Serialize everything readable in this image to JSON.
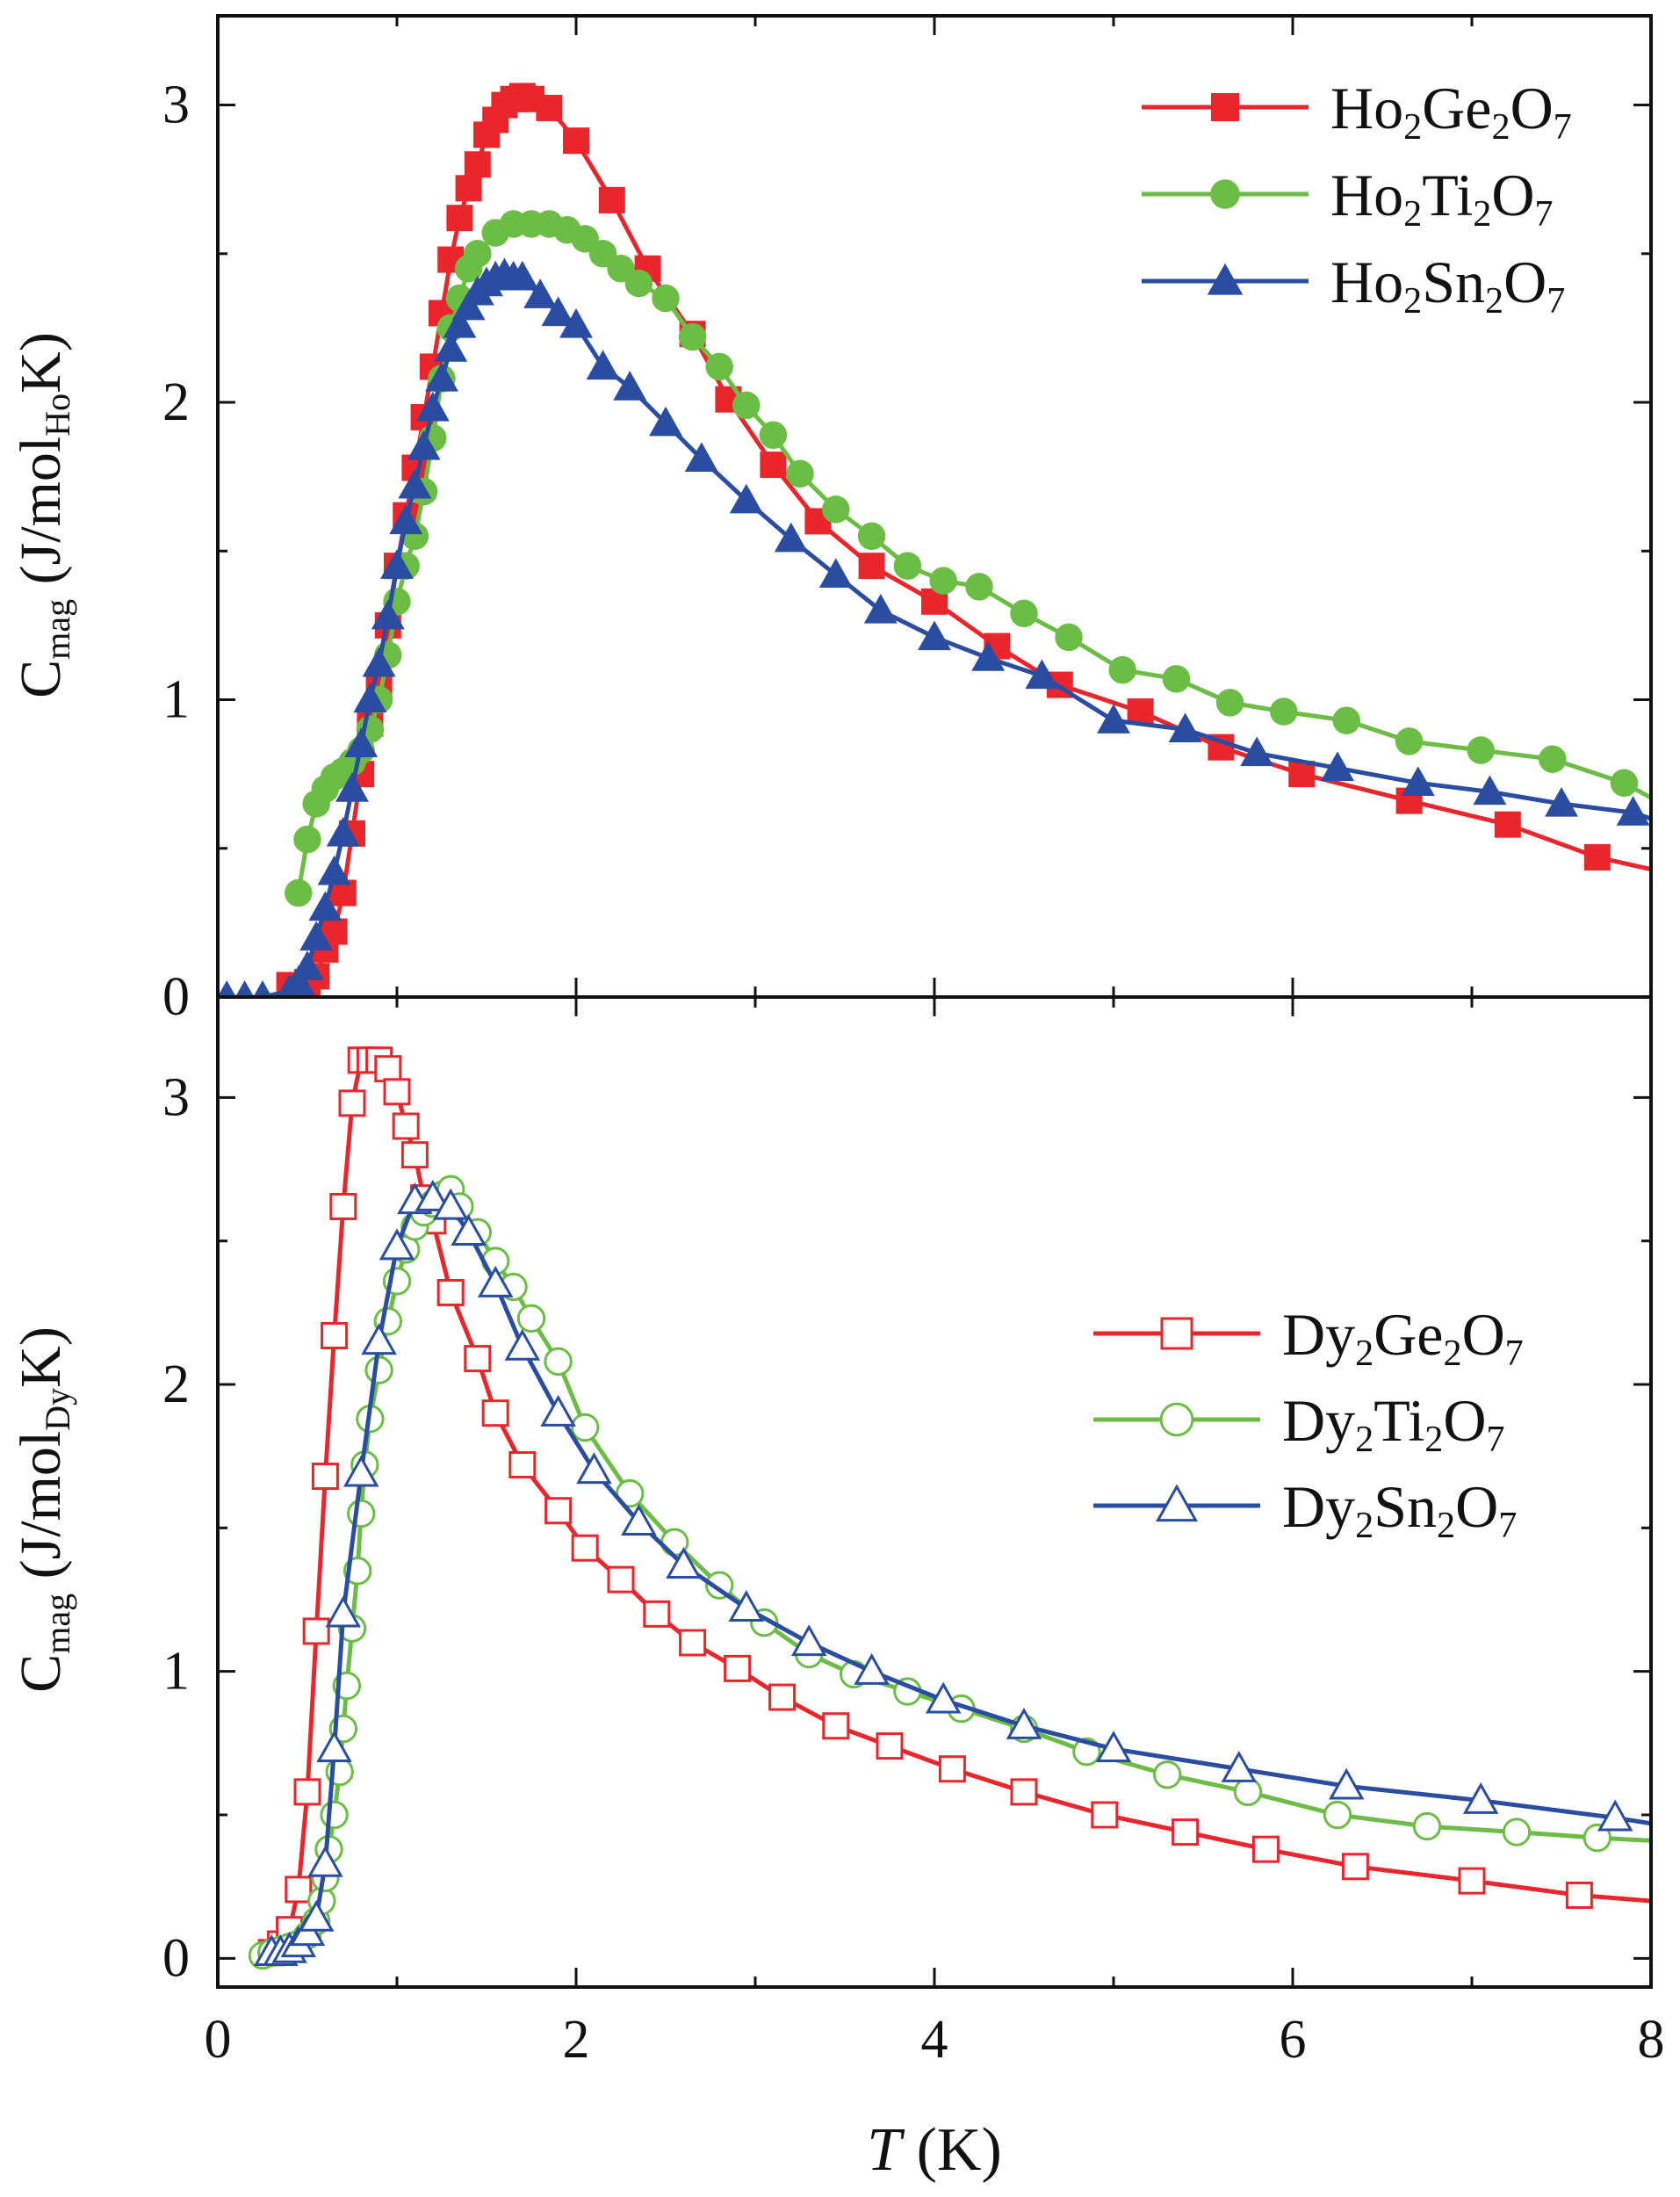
{
  "chart_data": [
    {
      "type": "line",
      "panel": "top",
      "ylabel_main": "C",
      "ylabel_sub": "mag",
      "ylabel_unit_pre": "(J/mol",
      "ylabel_unit_sub": "Ho",
      "ylabel_unit_post": "K)",
      "xlim": [
        0,
        8
      ],
      "ylim": [
        0,
        3.3
      ],
      "yticks": [
        0,
        1,
        2,
        3
      ],
      "ytick_labels": [
        "0",
        "1",
        "2",
        "3"
      ],
      "marker_fill": "filled",
      "legend_position": "top-right",
      "series": [
        {
          "name": "Ho2Ge2O7",
          "legend": [
            {
              "t": "Ho"
            },
            {
              "t": "2",
              "sub": true
            },
            {
              "t": "Ge"
            },
            {
              "t": "2",
              "sub": true
            },
            {
              "t": "O"
            },
            {
              "t": "7",
              "sub": true
            }
          ],
          "color": "#e8262b",
          "marker": "square",
          "x": [
            0.4,
            0.45,
            0.5,
            0.55,
            0.6,
            0.65,
            0.7,
            0.75,
            0.8,
            0.85,
            0.9,
            0.95,
            1.0,
            1.05,
            1.1,
            1.15,
            1.2,
            1.25,
            1.3,
            1.35,
            1.4,
            1.45,
            1.5,
            1.55,
            1.6,
            1.65,
            1.7,
            1.75,
            1.85,
            2.0,
            2.2,
            2.4,
            2.65,
            2.85,
            3.1,
            3.35,
            3.65,
            4.0,
            4.35,
            4.7,
            5.15,
            5.6,
            6.05,
            6.65,
            7.2,
            7.7,
            8.0
          ],
          "values": [
            0.04,
            0.04,
            0.05,
            0.07,
            0.16,
            0.22,
            0.35,
            0.55,
            0.75,
            0.92,
            1.05,
            1.25,
            1.45,
            1.62,
            1.78,
            1.95,
            2.12,
            2.3,
            2.48,
            2.62,
            2.72,
            2.8,
            2.9,
            2.95,
            3.0,
            3.02,
            3.03,
            3.02,
            2.99,
            2.88,
            2.68,
            2.45,
            2.23,
            2.01,
            1.79,
            1.6,
            1.45,
            1.33,
            1.18,
            1.05,
            0.96,
            0.84,
            0.75,
            0.66,
            0.58,
            0.47,
            0.43
          ]
        },
        {
          "name": "Ho2Ti2O7",
          "legend": [
            {
              "t": "Ho"
            },
            {
              "t": "2",
              "sub": true
            },
            {
              "t": "Ti"
            },
            {
              "t": "2",
              "sub": true
            },
            {
              "t": "O"
            },
            {
              "t": "7",
              "sub": true
            }
          ],
          "color": "#6cbd45",
          "marker": "circle",
          "x": [
            0.45,
            0.5,
            0.55,
            0.6,
            0.65,
            0.7,
            0.75,
            0.8,
            0.85,
            0.9,
            0.95,
            1.0,
            1.05,
            1.1,
            1.15,
            1.2,
            1.25,
            1.3,
            1.35,
            1.4,
            1.45,
            1.55,
            1.65,
            1.75,
            1.85,
            1.95,
            2.05,
            2.15,
            2.25,
            2.35,
            2.5,
            2.65,
            2.8,
            2.95,
            3.1,
            3.25,
            3.45,
            3.65,
            3.85,
            4.05,
            4.25,
            4.5,
            4.75,
            5.05,
            5.35,
            5.65,
            5.95,
            6.3,
            6.65,
            7.05,
            7.45,
            7.85,
            8.0
          ],
          "values": [
            0.35,
            0.53,
            0.65,
            0.7,
            0.74,
            0.76,
            0.79,
            0.83,
            0.9,
            1.0,
            1.15,
            1.33,
            1.45,
            1.55,
            1.7,
            1.88,
            2.08,
            2.25,
            2.35,
            2.45,
            2.5,
            2.57,
            2.6,
            2.6,
            2.6,
            2.58,
            2.55,
            2.5,
            2.45,
            2.4,
            2.35,
            2.22,
            2.12,
            1.99,
            1.89,
            1.76,
            1.64,
            1.55,
            1.45,
            1.4,
            1.38,
            1.29,
            1.21,
            1.1,
            1.07,
            0.99,
            0.96,
            0.93,
            0.86,
            0.83,
            0.8,
            0.72,
            0.67
          ]
        },
        {
          "name": "Ho2Sn2O7",
          "legend": [
            {
              "t": "Ho"
            },
            {
              "t": "2",
              "sub": true
            },
            {
              "t": "Sn"
            },
            {
              "t": "2",
              "sub": true
            },
            {
              "t": "O"
            },
            {
              "t": "7",
              "sub": true
            }
          ],
          "color": "#2a4da1",
          "marker": "triangle",
          "x": [
            0.05,
            0.15,
            0.25,
            0.4,
            0.45,
            0.5,
            0.55,
            0.6,
            0.65,
            0.7,
            0.75,
            0.8,
            0.85,
            0.9,
            0.95,
            1.0,
            1.05,
            1.1,
            1.15,
            1.2,
            1.25,
            1.3,
            1.35,
            1.4,
            1.45,
            1.5,
            1.55,
            1.6,
            1.65,
            1.7,
            1.8,
            1.9,
            2.0,
            2.15,
            2.3,
            2.5,
            2.7,
            2.95,
            3.2,
            3.45,
            3.7,
            4.0,
            4.3,
            4.6,
            5.0,
            5.4,
            5.8,
            6.25,
            6.7,
            7.1,
            7.5,
            7.9,
            8.0
          ],
          "values": [
            0.0,
            0.0,
            0.0,
            0.02,
            0.05,
            0.1,
            0.2,
            0.3,
            0.42,
            0.55,
            0.7,
            0.85,
            1.0,
            1.12,
            1.28,
            1.45,
            1.6,
            1.72,
            1.85,
            1.98,
            2.08,
            2.18,
            2.26,
            2.32,
            2.37,
            2.4,
            2.42,
            2.43,
            2.42,
            2.42,
            2.36,
            2.3,
            2.26,
            2.12,
            2.05,
            1.93,
            1.81,
            1.67,
            1.54,
            1.42,
            1.3,
            1.21,
            1.14,
            1.08,
            0.93,
            0.9,
            0.82,
            0.77,
            0.72,
            0.69,
            0.65,
            0.62,
            0.6
          ]
        }
      ]
    },
    {
      "type": "line",
      "panel": "bottom",
      "xlabel_var": "T",
      "xlabel_unit": "(K)",
      "ylabel_main": "C",
      "ylabel_sub": "mag",
      "ylabel_unit_pre": "(J/mol",
      "ylabel_unit_sub": "Dy",
      "ylabel_unit_post": "K)",
      "xlim": [
        0,
        8
      ],
      "ylim": [
        -0.1,
        3.35
      ],
      "xticks": [
        0,
        2,
        4,
        6,
        8
      ],
      "xtick_labels": [
        "0",
        "2",
        "4",
        "6",
        "8"
      ],
      "yticks": [
        0,
        1,
        2,
        3
      ],
      "ytick_labels": [
        "0",
        "1",
        "2",
        "3"
      ],
      "marker_fill": "open",
      "legend_position": "right",
      "series": [
        {
          "name": "Dy2Ge2O7",
          "legend": [
            {
              "t": "Dy"
            },
            {
              "t": "2",
              "sub": true
            },
            {
              "t": "Ge"
            },
            {
              "t": "2",
              "sub": true
            },
            {
              "t": "O"
            },
            {
              "t": "7",
              "sub": true
            }
          ],
          "color": "#e8262b",
          "marker": "square",
          "x": [
            0.3,
            0.35,
            0.4,
            0.45,
            0.5,
            0.55,
            0.6,
            0.65,
            0.7,
            0.75,
            0.8,
            0.85,
            0.9,
            0.95,
            1.0,
            1.05,
            1.1,
            1.15,
            1.2,
            1.3,
            1.45,
            1.55,
            1.7,
            1.9,
            2.05,
            2.25,
            2.45,
            2.65,
            2.9,
            3.15,
            3.45,
            3.75,
            4.1,
            4.5,
            4.95,
            5.4,
            5.85,
            6.35,
            7.0,
            7.6,
            8.0
          ],
          "values": [
            0.02,
            0.05,
            0.1,
            0.24,
            0.58,
            1.14,
            1.68,
            2.17,
            2.62,
            2.98,
            3.13,
            3.13,
            3.13,
            3.1,
            3.02,
            2.9,
            2.8,
            2.65,
            2.57,
            2.32,
            2.09,
            1.9,
            1.72,
            1.56,
            1.43,
            1.32,
            1.2,
            1.1,
            1.01,
            0.91,
            0.81,
            0.74,
            0.66,
            0.58,
            0.5,
            0.44,
            0.38,
            0.32,
            0.27,
            0.22,
            0.2
          ]
        },
        {
          "name": "Dy2Ti2O7",
          "legend": [
            {
              "t": "Dy"
            },
            {
              "t": "2",
              "sub": true
            },
            {
              "t": "Ti"
            },
            {
              "t": "2",
              "sub": true
            },
            {
              "t": "O"
            },
            {
              "t": "7",
              "sub": true
            }
          ],
          "color": "#6cbd45",
          "marker": "circle",
          "x": [
            0.25,
            0.3,
            0.35,
            0.4,
            0.45,
            0.5,
            0.55,
            0.58,
            0.6,
            0.62,
            0.65,
            0.68,
            0.7,
            0.72,
            0.75,
            0.78,
            0.8,
            0.82,
            0.85,
            0.9,
            0.95,
            1.0,
            1.05,
            1.1,
            1.15,
            1.2,
            1.25,
            1.3,
            1.35,
            1.45,
            1.55,
            1.65,
            1.75,
            1.9,
            2.05,
            2.3,
            2.55,
            2.8,
            3.05,
            3.3,
            3.55,
            3.85,
            4.15,
            4.5,
            4.85,
            5.3,
            5.75,
            6.25,
            6.75,
            7.25,
            7.7,
            8.0
          ],
          "values": [
            0.01,
            0.02,
            0.03,
            0.04,
            0.05,
            0.08,
            0.13,
            0.2,
            0.28,
            0.38,
            0.5,
            0.65,
            0.8,
            0.95,
            1.15,
            1.35,
            1.55,
            1.72,
            1.88,
            2.05,
            2.22,
            2.36,
            2.47,
            2.55,
            2.6,
            2.63,
            2.66,
            2.68,
            2.62,
            2.53,
            2.43,
            2.34,
            2.23,
            2.08,
            1.85,
            1.62,
            1.45,
            1.3,
            1.17,
            1.06,
            0.99,
            0.93,
            0.87,
            0.8,
            0.72,
            0.64,
            0.58,
            0.5,
            0.46,
            0.44,
            0.42,
            0.41
          ]
        },
        {
          "name": "Dy2Sn2O7",
          "legend": [
            {
              "t": "Dy"
            },
            {
              "t": "2",
              "sub": true
            },
            {
              "t": "Sn"
            },
            {
              "t": "2",
              "sub": true
            },
            {
              "t": "O"
            },
            {
              "t": "7",
              "sub": true
            }
          ],
          "color": "#2a4da1",
          "marker": "triangle",
          "x": [
            0.3,
            0.35,
            0.4,
            0.45,
            0.5,
            0.55,
            0.6,
            0.65,
            0.7,
            0.8,
            0.9,
            1.0,
            1.1,
            1.2,
            1.3,
            1.4,
            1.55,
            1.7,
            1.9,
            2.1,
            2.35,
            2.6,
            2.95,
            3.3,
            3.65,
            4.05,
            4.5,
            5.0,
            5.7,
            6.3,
            7.05,
            7.8,
            8.0
          ],
          "values": [
            0.02,
            0.02,
            0.03,
            0.05,
            0.09,
            0.14,
            0.33,
            0.73,
            1.2,
            1.69,
            2.15,
            2.48,
            2.64,
            2.65,
            2.62,
            2.53,
            2.35,
            2.13,
            1.9,
            1.7,
            1.52,
            1.37,
            1.22,
            1.1,
            1.0,
            0.9,
            0.81,
            0.73,
            0.66,
            0.6,
            0.55,
            0.49,
            0.47
          ]
        }
      ]
    }
  ]
}
